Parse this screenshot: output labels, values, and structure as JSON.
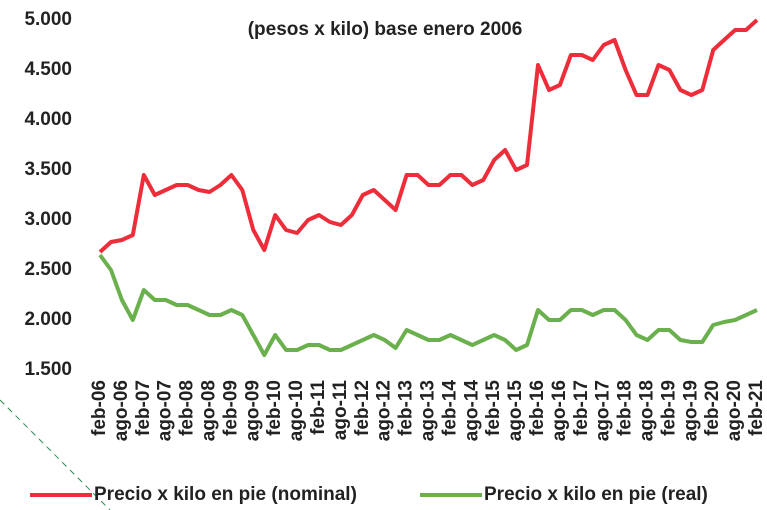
{
  "chart_data": {
    "type": "line",
    "title": "(pesos x kilo) base enero 2006",
    "categories": [
      "feb-06",
      null,
      "ago-06",
      null,
      "feb-07",
      null,
      "ago-07",
      null,
      "feb-08",
      null,
      "ago-08",
      null,
      "feb-09",
      null,
      "ago-09",
      null,
      "feb-10",
      null,
      "ago-10",
      null,
      "feb-11",
      null,
      "ago-11",
      null,
      "feb-12",
      null,
      "ago-12",
      null,
      "feb-13",
      null,
      "ago-13",
      null,
      "feb-14",
      null,
      "ago-14",
      null,
      "feb-15",
      null,
      "ago-15",
      null,
      "feb-16",
      null,
      "ago-16",
      null,
      "feb-17",
      null,
      "ago-17",
      null,
      "feb-18",
      null,
      "ago-18",
      null,
      "feb-19",
      null,
      "ago-19",
      null,
      "feb-20",
      null,
      "ago-20",
      null,
      "feb-21"
    ],
    "series": [
      {
        "name": "Precio x kilo en pie (nominal)",
        "color": "#ee2d3a",
        "values": [
          2680,
          2780,
          2800,
          2850,
          3450,
          3250,
          3300,
          3350,
          3350,
          3300,
          3280,
          3350,
          3450,
          3300,
          2900,
          2700,
          3050,
          2900,
          2870,
          3000,
          3050,
          2980,
          2950,
          3050,
          3250,
          3300,
          3200,
          3100,
          3450,
          3450,
          3350,
          3350,
          3450,
          3450,
          3350,
          3400,
          3600,
          3700,
          3500,
          3550,
          4550,
          4300,
          4350,
          4650,
          4650,
          4600,
          4750,
          4800,
          4500,
          4250,
          4250,
          4550,
          4500,
          4300,
          4250,
          4300,
          4700,
          4800,
          4900,
          4900,
          5000
        ]
      },
      {
        "name": "Precio x kilo en pie (real)",
        "color": "#6ab04c",
        "values": [
          2650,
          2500,
          2200,
          2000,
          2300,
          2200,
          2200,
          2150,
          2150,
          2100,
          2050,
          2050,
          2100,
          2050,
          1850,
          1650,
          1850,
          1700,
          1700,
          1750,
          1750,
          1700,
          1700,
          1750,
          1800,
          1850,
          1800,
          1720,
          1900,
          1850,
          1800,
          1800,
          1850,
          1800,
          1750,
          1800,
          1850,
          1800,
          1700,
          1750,
          2100,
          2000,
          2000,
          2100,
          2100,
          2050,
          2100,
          2100,
          2000,
          1850,
          1800,
          1900,
          1900,
          1800,
          1780,
          1780,
          1950,
          1980,
          2000,
          2050,
          2100
        ]
      }
    ],
    "ylim": [
      1500,
      5000
    ],
    "yticks": [
      {
        "value": 1500,
        "label": "1.500"
      },
      {
        "value": 2000,
        "label": "2.000"
      },
      {
        "value": 2500,
        "label": "2.500"
      },
      {
        "value": 3000,
        "label": "3.000"
      },
      {
        "value": 3500,
        "label": "3.500"
      },
      {
        "value": 4000,
        "label": "4.000"
      },
      {
        "value": 4500,
        "label": "4.500"
      },
      {
        "value": 5000,
        "label": "5.000"
      }
    ],
    "grid": false,
    "legend": "bottom"
  }
}
